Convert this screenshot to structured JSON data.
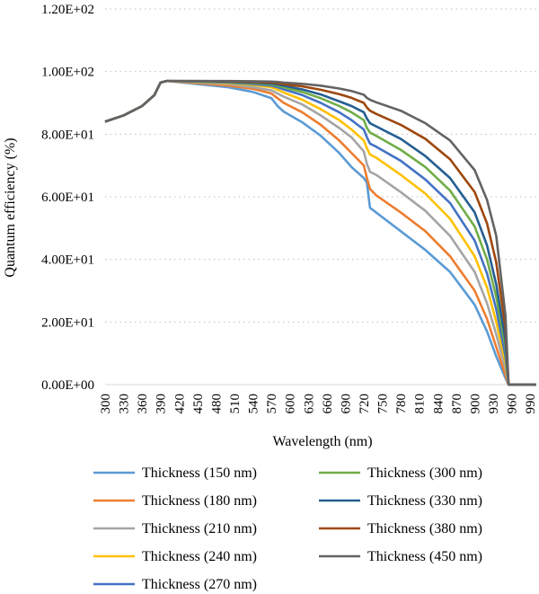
{
  "chart_data": {
    "type": "line",
    "xlabel": "Wavelength (nm)",
    "ylabel": "Quantum efficiency (%)",
    "xlim": [
      300,
      1000
    ],
    "ylim": [
      0,
      120
    ],
    "y_ticks": [
      "0.00E+00",
      "2.00E+01",
      "4.00E+01",
      "6.00E+01",
      "8.00E+01",
      "1.00E+02",
      "1.20E+02"
    ],
    "x_ticks": [
      "300",
      "330",
      "360",
      "390",
      "420",
      "450",
      "480",
      "510",
      "540",
      "570",
      "600",
      "630",
      "660",
      "690",
      "720",
      "750",
      "780",
      "810",
      "840",
      "870",
      "900",
      "930",
      "960",
      "990"
    ],
    "grid": "horizontal dotted",
    "legend_position": "bottom",
    "series": [
      {
        "name": "Thickness (150 nm)",
        "color": "#5B9BD5",
        "x": [
          300,
          330,
          360,
          380,
          390,
          400,
          450,
          500,
          540,
          570,
          580,
          590,
          620,
          650,
          680,
          700,
          720,
          725,
          730,
          740,
          780,
          820,
          860,
          900,
          920,
          935,
          950,
          955,
          960,
          1000
        ],
        "y": [
          84,
          86,
          89,
          92.5,
          96.5,
          97,
          96,
          95,
          93.5,
          91.5,
          89,
          87.2,
          83.8,
          79.5,
          74,
          69.5,
          66,
          64.5,
          56.5,
          55,
          49,
          43,
          36,
          25.5,
          17,
          9,
          2,
          0,
          0,
          0
        ]
      },
      {
        "name": "Thickness (180 nm)",
        "color": "#ED7D31",
        "x": [
          300,
          330,
          360,
          380,
          390,
          400,
          450,
          500,
          540,
          570,
          580,
          590,
          620,
          650,
          680,
          700,
          720,
          725,
          730,
          740,
          780,
          820,
          860,
          900,
          920,
          935,
          950,
          955,
          960,
          1000
        ],
        "y": [
          84,
          86,
          89,
          92.5,
          96.5,
          97,
          96.3,
          95.5,
          94.5,
          93,
          91.5,
          90,
          87,
          83,
          78,
          74,
          70,
          66,
          62.5,
          60.5,
          55,
          49,
          41,
          30,
          21,
          12,
          3,
          0,
          0,
          0
        ]
      },
      {
        "name": "Thickness (210 nm)",
        "color": "#A5A5A5",
        "x": [
          300,
          330,
          360,
          380,
          390,
          400,
          450,
          500,
          540,
          570,
          580,
          590,
          620,
          650,
          680,
          700,
          720,
          725,
          730,
          740,
          780,
          820,
          860,
          900,
          920,
          935,
          950,
          955,
          960,
          1000
        ],
        "y": [
          84,
          86,
          89,
          92.5,
          96.5,
          97,
          96.5,
          96,
          95,
          94,
          93,
          92,
          89.5,
          86,
          82,
          79,
          74.5,
          70.5,
          68,
          67,
          61.5,
          55.5,
          47.5,
          36,
          26,
          16,
          5,
          0,
          0,
          0
        ]
      },
      {
        "name": "Thickness (240 nm)",
        "color": "#FFC000",
        "x": [
          300,
          330,
          360,
          380,
          390,
          400,
          450,
          500,
          540,
          570,
          580,
          590,
          620,
          650,
          680,
          700,
          720,
          725,
          730,
          740,
          780,
          820,
          860,
          900,
          920,
          935,
          950,
          955,
          960,
          1000
        ],
        "y": [
          84,
          86,
          89,
          92.5,
          96.5,
          97,
          96.7,
          96.3,
          95.7,
          95,
          94.2,
          93.3,
          91,
          88,
          84.5,
          81.5,
          78,
          75.5,
          73.5,
          72.5,
          67,
          61,
          53,
          41,
          31,
          20,
          7,
          0,
          0,
          0
        ]
      },
      {
        "name": "Thickness (270 nm)",
        "color": "#4472C4",
        "x": [
          300,
          330,
          360,
          380,
          390,
          400,
          450,
          500,
          540,
          570,
          580,
          590,
          620,
          650,
          680,
          700,
          720,
          725,
          730,
          740,
          780,
          820,
          860,
          900,
          920,
          935,
          950,
          955,
          960,
          1000
        ],
        "y": [
          84,
          86,
          89,
          92.5,
          96.5,
          97,
          96.8,
          96.5,
          96,
          95.5,
          95,
          94.3,
          92.5,
          90,
          87,
          84.5,
          81.5,
          79,
          77,
          76,
          71.5,
          65.5,
          58,
          46,
          35.5,
          24,
          9,
          0,
          0,
          0
        ]
      },
      {
        "name": "Thickness (300 nm)",
        "color": "#70AD47",
        "x": [
          300,
          330,
          360,
          380,
          390,
          400,
          450,
          500,
          540,
          570,
          580,
          590,
          620,
          650,
          680,
          700,
          720,
          725,
          730,
          740,
          780,
          820,
          860,
          900,
          920,
          935,
          950,
          955,
          960,
          1000
        ],
        "y": [
          84,
          86,
          89,
          92.5,
          96.5,
          97,
          96.9,
          96.7,
          96.3,
          95.9,
          95.5,
          95,
          93.5,
          91.5,
          89,
          87,
          84.5,
          82,
          80.5,
          79.5,
          75,
          69.5,
          62,
          50.5,
          40,
          28,
          12,
          0,
          0,
          0
        ]
      },
      {
        "name": "Thickness (330 nm)",
        "color": "#255E91",
        "x": [
          300,
          330,
          360,
          380,
          390,
          400,
          450,
          500,
          540,
          570,
          580,
          590,
          620,
          650,
          680,
          700,
          720,
          725,
          730,
          740,
          780,
          820,
          860,
          900,
          920,
          935,
          950,
          955,
          960,
          1000
        ],
        "y": [
          84,
          86,
          89,
          92.5,
          96.5,
          97,
          96.95,
          96.8,
          96.5,
          96.2,
          95.9,
          95.5,
          94.3,
          92.7,
          90.5,
          89,
          87,
          85,
          83.5,
          82.5,
          78.5,
          73,
          66,
          55,
          44.5,
          32,
          14,
          0,
          0,
          0
        ]
      },
      {
        "name": "Thickness (380 nm)",
        "color": "#9E480E",
        "x": [
          300,
          330,
          360,
          380,
          390,
          400,
          450,
          500,
          540,
          570,
          580,
          590,
          620,
          650,
          680,
          700,
          720,
          725,
          730,
          740,
          780,
          820,
          860,
          900,
          920,
          935,
          950,
          955,
          960,
          1000
        ],
        "y": [
          84,
          86,
          89,
          92.5,
          96.5,
          97,
          97,
          96.9,
          96.7,
          96.5,
          96.3,
          96,
          95.3,
          94.2,
          92.8,
          91.6,
          90,
          88.5,
          87.5,
          86.5,
          83,
          78.5,
          72,
          61.5,
          51.5,
          39,
          18,
          0,
          0,
          0
        ]
      },
      {
        "name": "Thickness (450 nm)",
        "color": "#636363",
        "x": [
          300,
          330,
          360,
          380,
          390,
          400,
          450,
          500,
          540,
          570,
          580,
          590,
          620,
          650,
          680,
          700,
          720,
          725,
          730,
          740,
          780,
          820,
          860,
          900,
          920,
          935,
          950,
          955,
          960,
          1000
        ],
        "y": [
          84,
          86,
          89,
          92.5,
          96.5,
          97,
          97,
          97,
          96.9,
          96.8,
          96.7,
          96.5,
          96.1,
          95.5,
          94.6,
          93.8,
          92.6,
          91.6,
          91,
          90.2,
          87.5,
          83.5,
          78,
          68.5,
          59,
          47.5,
          22,
          0,
          0,
          0
        ]
      }
    ]
  }
}
